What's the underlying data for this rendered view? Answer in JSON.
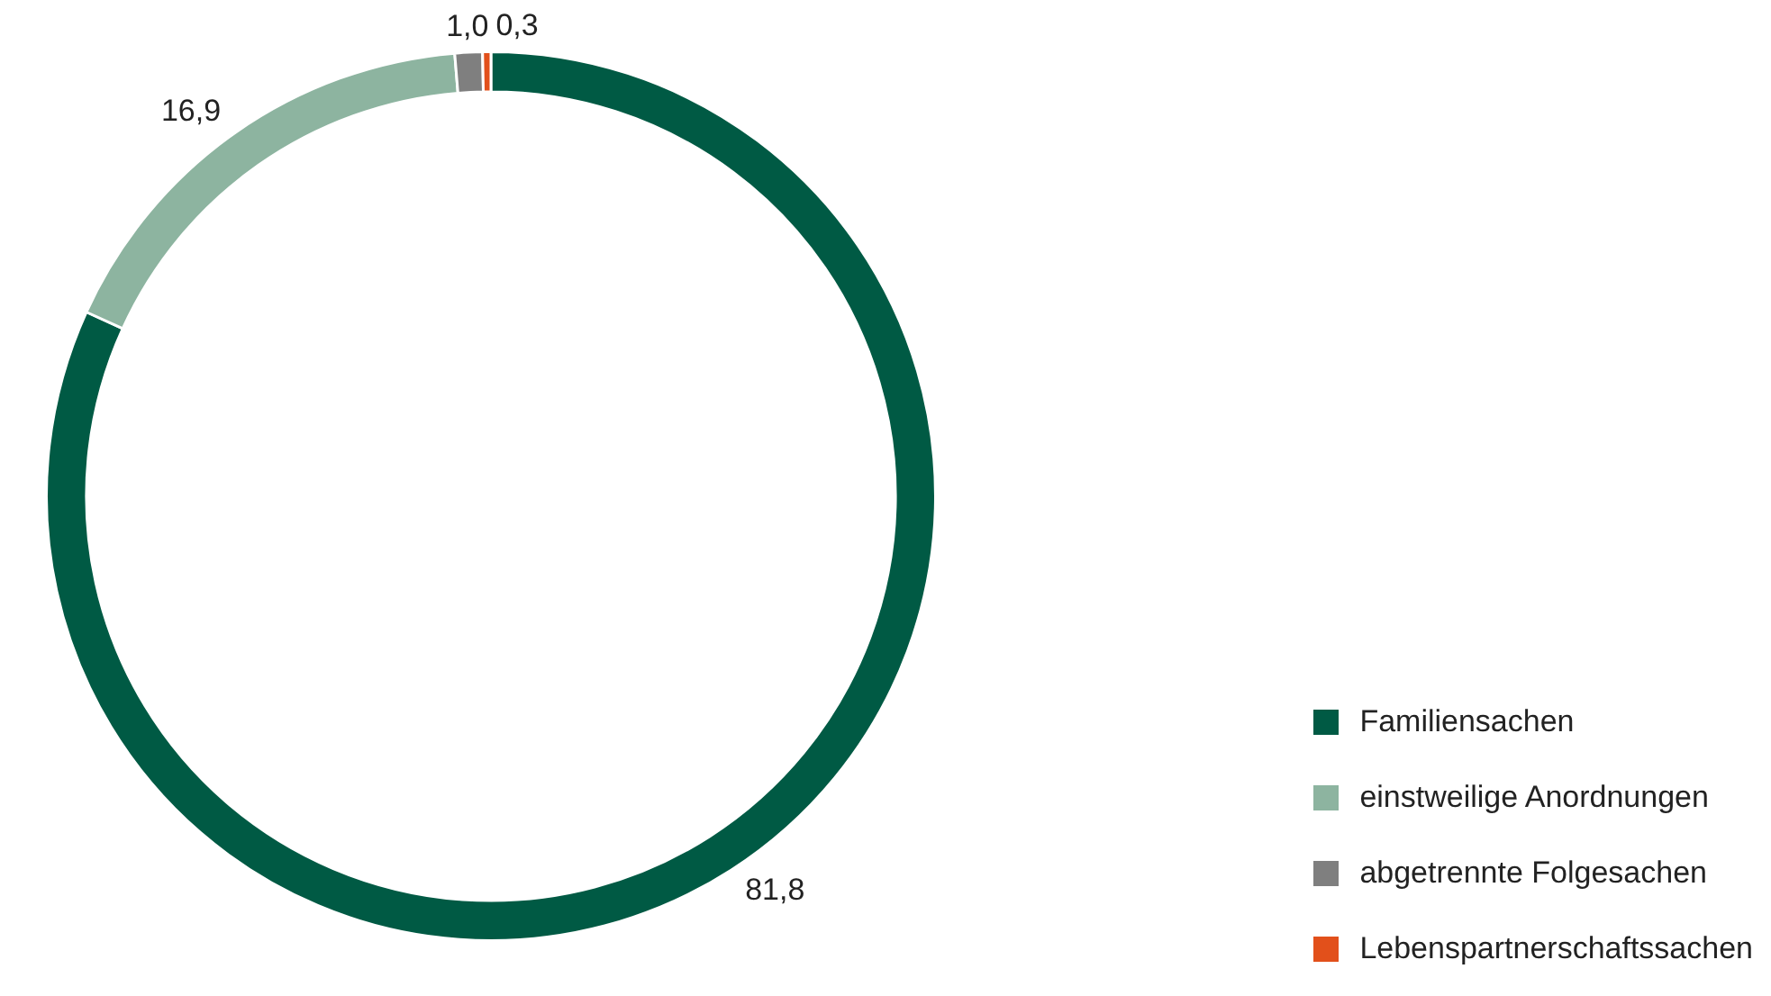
{
  "chart_data": {
    "type": "donut",
    "categories": [
      "Familiensachen",
      "einstweilige Anordnungen",
      "abgetrennte Folgesachen",
      "Lebenspartnerschaftssachen"
    ],
    "values": [
      81.8,
      16.9,
      1.0,
      0.3
    ],
    "value_labels": [
      "81,8",
      "16,9",
      "1,0",
      "0,3"
    ],
    "colors": [
      "#005a44",
      "#8db4a0",
      "#7f7f7f",
      "#e2501b"
    ],
    "legend": "bottom right"
  }
}
